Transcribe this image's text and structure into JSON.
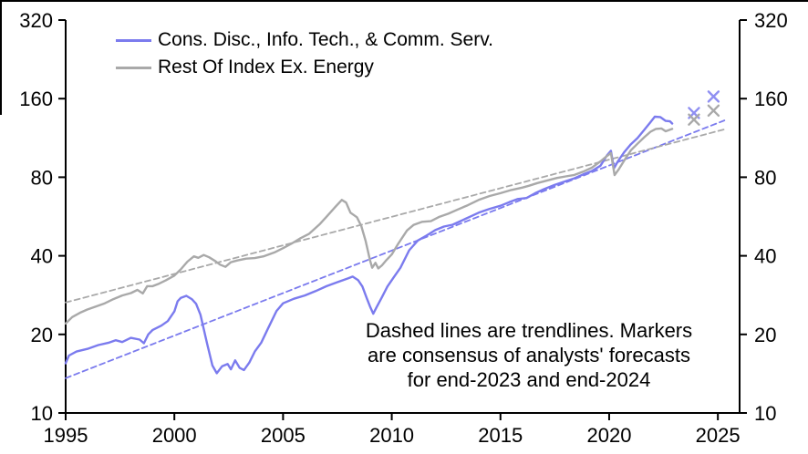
{
  "figure": {
    "background": "#ffffff",
    "frame_color": "#000000"
  },
  "annotation": {
    "lines": [
      "Dashed lines are trendlines. Markers",
      "are consensus of analysts' forecasts",
      "for end-2023 and end-2024"
    ]
  },
  "chart_data": {
    "type": "line",
    "title": "",
    "xlabel": "",
    "ylabel": "",
    "x_axis": {
      "min": 1995,
      "max": 2026,
      "ticks": [
        1995,
        2000,
        2005,
        2010,
        2015,
        2020,
        2025
      ]
    },
    "y_axis": {
      "scale": "log2",
      "min": 10,
      "max": 320,
      "ticks": [
        10,
        20,
        40,
        80,
        160,
        320
      ],
      "label_sides": [
        "left",
        "right"
      ]
    },
    "grid": false,
    "legend_position": "top-left",
    "axis_color": "#000000",
    "series": [
      {
        "name": "Cons. Disc., Info. Tech., & Comm. Serv.",
        "color": "#7b7bee",
        "style": "solid",
        "points": [
          [
            1995.0,
            15.5
          ],
          [
            1995.15,
            16.6
          ],
          [
            1995.5,
            17.2
          ],
          [
            1996.0,
            17.6
          ],
          [
            1996.5,
            18.2
          ],
          [
            1997.0,
            18.6
          ],
          [
            1997.3,
            19.0
          ],
          [
            1997.6,
            18.7
          ],
          [
            1998.0,
            19.4
          ],
          [
            1998.4,
            19.1
          ],
          [
            1998.6,
            18.5
          ],
          [
            1998.8,
            20.0
          ],
          [
            1999.0,
            20.8
          ],
          [
            1999.4,
            21.6
          ],
          [
            1999.7,
            22.5
          ],
          [
            2000.0,
            24.5
          ],
          [
            2000.15,
            26.8
          ],
          [
            2000.3,
            27.6
          ],
          [
            2000.55,
            28.1
          ],
          [
            2000.8,
            27.3
          ],
          [
            2001.0,
            26.2
          ],
          [
            2001.2,
            23.8
          ],
          [
            2001.5,
            18.5
          ],
          [
            2001.75,
            15.2
          ],
          [
            2001.95,
            14.2
          ],
          [
            2002.2,
            15.1
          ],
          [
            2002.45,
            15.4
          ],
          [
            2002.6,
            14.7
          ],
          [
            2002.8,
            15.9
          ],
          [
            2003.0,
            14.9
          ],
          [
            2003.2,
            14.6
          ],
          [
            2003.45,
            15.6
          ],
          [
            2003.7,
            17.2
          ],
          [
            2004.0,
            18.6
          ],
          [
            2004.3,
            21.0
          ],
          [
            2004.7,
            24.6
          ],
          [
            2005.0,
            26.3
          ],
          [
            2005.5,
            27.4
          ],
          [
            2006.0,
            28.2
          ],
          [
            2006.5,
            29.3
          ],
          [
            2007.0,
            30.6
          ],
          [
            2007.5,
            31.7
          ],
          [
            2008.0,
            32.8
          ],
          [
            2008.2,
            33.3
          ],
          [
            2008.45,
            32.3
          ],
          [
            2008.65,
            30.5
          ],
          [
            2008.85,
            27.5
          ],
          [
            2009.0,
            25.6
          ],
          [
            2009.15,
            24.0
          ],
          [
            2009.3,
            25.4
          ],
          [
            2009.55,
            27.8
          ],
          [
            2009.8,
            30.5
          ],
          [
            2010.1,
            33.2
          ],
          [
            2010.4,
            36.0
          ],
          [
            2010.8,
            42.0
          ],
          [
            2011.2,
            45.8
          ],
          [
            2011.6,
            47.8
          ],
          [
            2012.0,
            50.2
          ],
          [
            2012.4,
            51.8
          ],
          [
            2012.8,
            52.6
          ],
          [
            2013.2,
            54.5
          ],
          [
            2013.6,
            56.5
          ],
          [
            2014.0,
            58.5
          ],
          [
            2014.5,
            60.5
          ],
          [
            2015.0,
            62.2
          ],
          [
            2015.4,
            64.2
          ],
          [
            2015.8,
            66.0
          ],
          [
            2016.2,
            66.6
          ],
          [
            2016.6,
            69.5
          ],
          [
            2017.0,
            72.0
          ],
          [
            2017.5,
            74.8
          ],
          [
            2018.0,
            77.2
          ],
          [
            2018.4,
            79.2
          ],
          [
            2018.8,
            82.0
          ],
          [
            2019.2,
            84.5
          ],
          [
            2019.6,
            88.5
          ],
          [
            2019.9,
            97.0
          ],
          [
            2020.08,
            101.0
          ],
          [
            2020.22,
            86.5
          ],
          [
            2020.4,
            92.0
          ],
          [
            2020.7,
            100.0
          ],
          [
            2021.0,
            107.0
          ],
          [
            2021.3,
            113.0
          ],
          [
            2021.6,
            121.0
          ],
          [
            2021.9,
            130.0
          ],
          [
            2022.1,
            136.5
          ],
          [
            2022.35,
            136.0
          ],
          [
            2022.6,
            131.5
          ],
          [
            2022.8,
            131.0
          ],
          [
            2022.9,
            128.5
          ]
        ]
      },
      {
        "name": "Rest Of Index Ex. Energy",
        "color": "#a9a9a9",
        "style": "solid",
        "points": [
          [
            1995.0,
            22.0
          ],
          [
            1995.3,
            23.3
          ],
          [
            1995.7,
            24.3
          ],
          [
            1996.0,
            24.9
          ],
          [
            1996.4,
            25.6
          ],
          [
            1996.8,
            26.3
          ],
          [
            1997.2,
            27.3
          ],
          [
            1997.6,
            28.2
          ],
          [
            1998.0,
            28.8
          ],
          [
            1998.3,
            29.6
          ],
          [
            1998.55,
            28.7
          ],
          [
            1998.75,
            30.6
          ],
          [
            1999.0,
            30.6
          ],
          [
            1999.3,
            31.3
          ],
          [
            1999.6,
            32.2
          ],
          [
            2000.0,
            33.6
          ],
          [
            2000.3,
            35.5
          ],
          [
            2000.6,
            38.0
          ],
          [
            2000.9,
            39.8
          ],
          [
            2001.1,
            39.3
          ],
          [
            2001.35,
            40.3
          ],
          [
            2001.6,
            39.5
          ],
          [
            2001.9,
            38.1
          ],
          [
            2002.1,
            37.0
          ],
          [
            2002.35,
            36.3
          ],
          [
            2002.6,
            37.8
          ],
          [
            2002.9,
            38.4
          ],
          [
            2003.3,
            39.0
          ],
          [
            2003.7,
            39.2
          ],
          [
            2004.1,
            39.8
          ],
          [
            2004.6,
            41.2
          ],
          [
            2005.0,
            42.8
          ],
          [
            2005.4,
            44.6
          ],
          [
            2005.8,
            46.7
          ],
          [
            2006.2,
            48.6
          ],
          [
            2006.7,
            53.0
          ],
          [
            2007.0,
            56.5
          ],
          [
            2007.4,
            61.5
          ],
          [
            2007.7,
            65.5
          ],
          [
            2007.9,
            64.0
          ],
          [
            2008.1,
            58.5
          ],
          [
            2008.4,
            56.2
          ],
          [
            2008.6,
            52.0
          ],
          [
            2008.8,
            45.5
          ],
          [
            2009.0,
            38.5
          ],
          [
            2009.1,
            36.0
          ],
          [
            2009.25,
            37.6
          ],
          [
            2009.38,
            35.8
          ],
          [
            2009.55,
            36.8
          ],
          [
            2009.75,
            38.5
          ],
          [
            2010.0,
            40.5
          ],
          [
            2010.3,
            44.5
          ],
          [
            2010.7,
            50.0
          ],
          [
            2011.0,
            52.5
          ],
          [
            2011.4,
            54.0
          ],
          [
            2011.8,
            54.3
          ],
          [
            2012.2,
            56.5
          ],
          [
            2012.6,
            58.0
          ],
          [
            2013.0,
            60.0
          ],
          [
            2013.5,
            62.5
          ],
          [
            2014.0,
            65.5
          ],
          [
            2014.5,
            67.8
          ],
          [
            2015.0,
            69.5
          ],
          [
            2015.5,
            71.5
          ],
          [
            2016.0,
            73.0
          ],
          [
            2016.3,
            74.2
          ],
          [
            2016.7,
            76.0
          ],
          [
            2017.1,
            77.5
          ],
          [
            2017.6,
            79.5
          ],
          [
            2018.0,
            80.6
          ],
          [
            2018.4,
            81.6
          ],
          [
            2018.8,
            84.0
          ],
          [
            2019.2,
            87.0
          ],
          [
            2019.6,
            92.0
          ],
          [
            2019.9,
            96.5
          ],
          [
            2020.08,
            99.0
          ],
          [
            2020.25,
            81.5
          ],
          [
            2020.45,
            86.0
          ],
          [
            2020.7,
            93.0
          ],
          [
            2021.0,
            101.5
          ],
          [
            2021.3,
            107.5
          ],
          [
            2021.6,
            113.5
          ],
          [
            2021.9,
            119.5
          ],
          [
            2022.15,
            122.5
          ],
          [
            2022.4,
            123.0
          ],
          [
            2022.6,
            120.0
          ],
          [
            2022.9,
            122.5
          ]
        ]
      },
      {
        "name": "Cons. Disc., Info. Tech., & Comm. Serv. trendline",
        "color": "#7b7bee",
        "style": "dashed",
        "points": [
          [
            1995.0,
            13.6
          ],
          [
            2025.3,
            132
          ]
        ]
      },
      {
        "name": "Rest Of Index Ex. Energy trendline",
        "color": "#a9a9a9",
        "style": "dashed",
        "points": [
          [
            1995.0,
            26.5
          ],
          [
            2025.3,
            122
          ]
        ]
      }
    ],
    "markers": [
      {
        "series": "Cons. Disc., Info. Tech., & Comm. Serv.",
        "label": "consensus analyst forecasts end-2023 and end-2024",
        "shape": "x",
        "color": "#8f8ff2",
        "points": [
          [
            2023.9,
            141
          ],
          [
            2024.8,
            163
          ]
        ]
      },
      {
        "series": "Rest Of Index Ex. Energy",
        "label": "consensus analyst forecasts end-2023 and end-2024",
        "shape": "x",
        "color": "#a9a9a9",
        "points": [
          [
            2023.9,
            133
          ],
          [
            2024.8,
            144
          ]
        ]
      }
    ]
  }
}
